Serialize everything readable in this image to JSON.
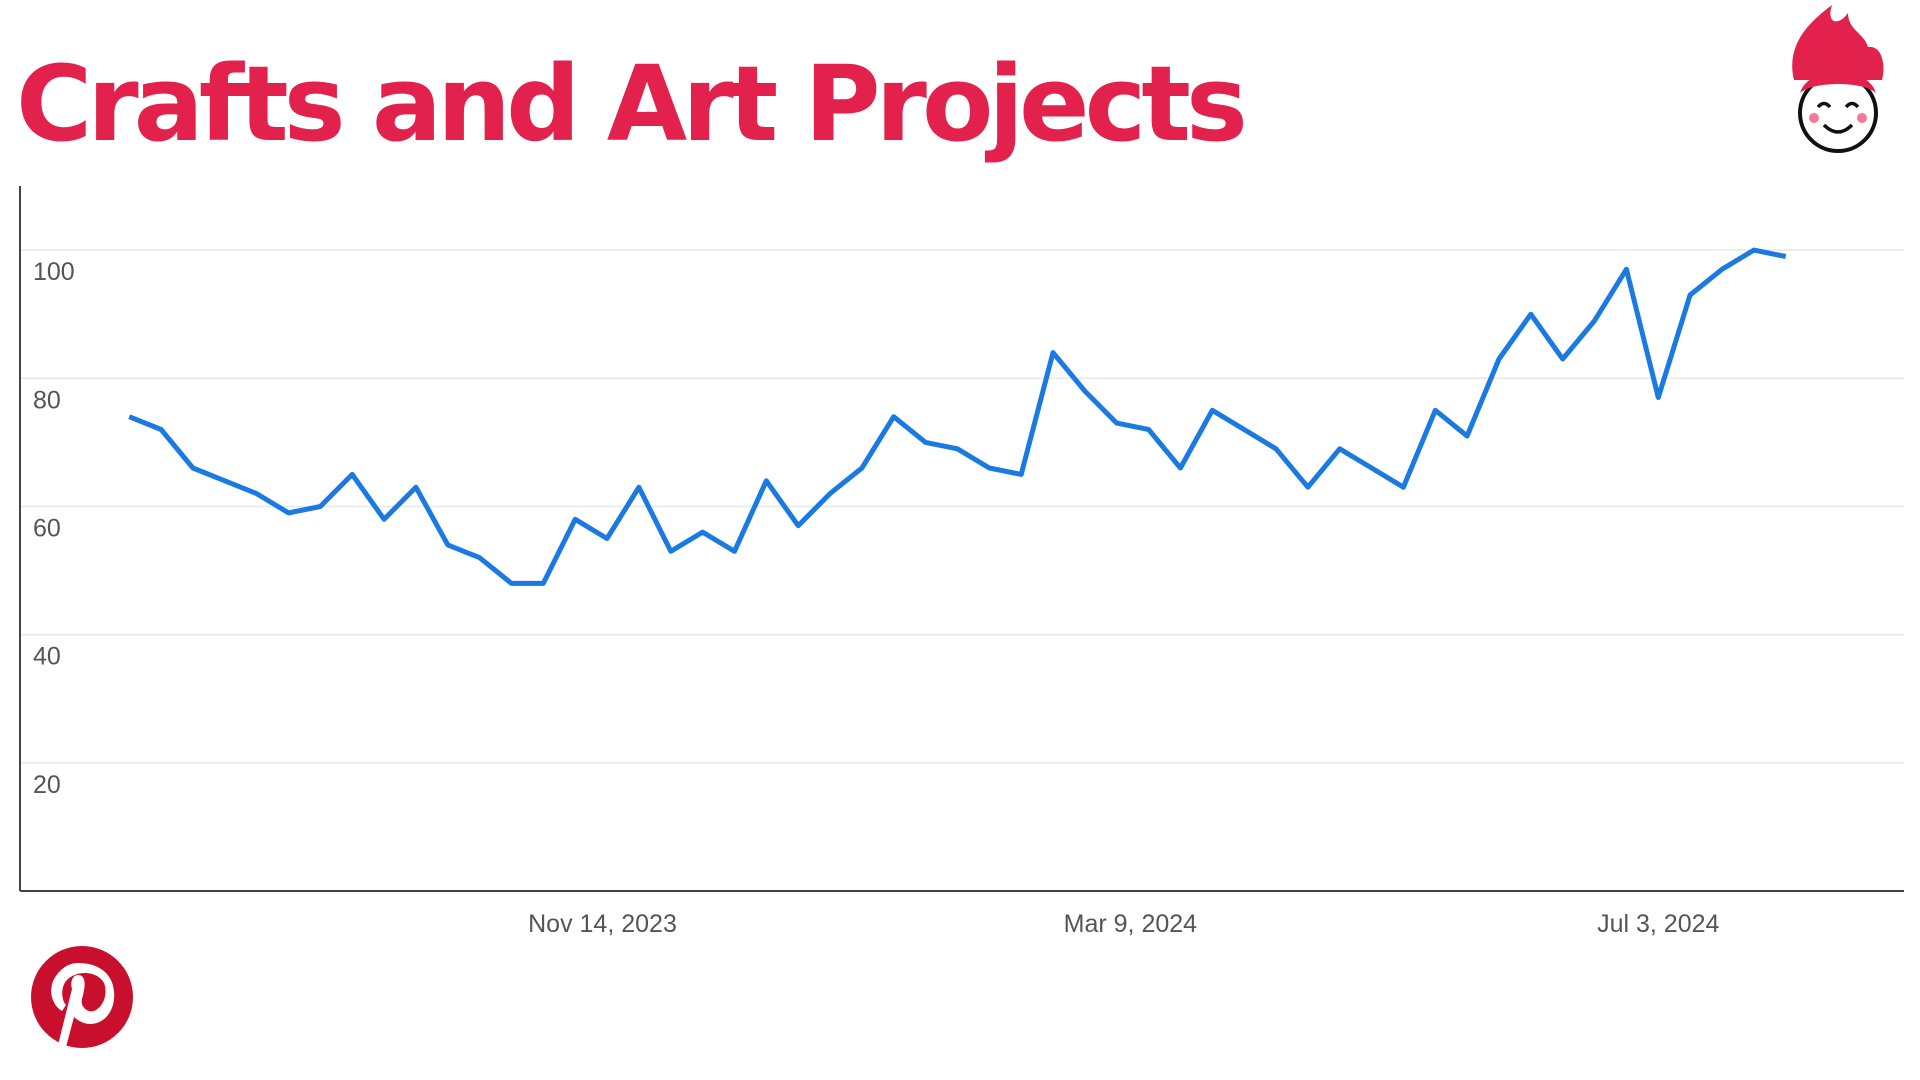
{
  "chart_data": {
    "type": "line",
    "title": "Crafts and Art Projects",
    "x": [
      "2023-08-02",
      "2023-08-09",
      "2023-08-16",
      "2023-08-23",
      "2023-08-30",
      "2023-09-06",
      "2023-09-13",
      "2023-09-20",
      "2023-09-27",
      "2023-10-04",
      "2023-10-11",
      "2023-10-18",
      "2023-10-25",
      "2023-11-01",
      "2023-11-08",
      "2023-11-15",
      "2023-11-22",
      "2023-11-29",
      "2023-12-06",
      "2023-12-13",
      "2023-12-20",
      "2023-12-27",
      "2024-01-03",
      "2024-01-10",
      "2024-01-17",
      "2024-01-24",
      "2024-01-31",
      "2024-02-07",
      "2024-02-14",
      "2024-02-21",
      "2024-02-28",
      "2024-03-06",
      "2024-03-13",
      "2024-03-20",
      "2024-03-27",
      "2024-04-03",
      "2024-04-10",
      "2024-04-17",
      "2024-04-24",
      "2024-05-01",
      "2024-05-08",
      "2024-05-15",
      "2024-05-22",
      "2024-05-29",
      "2024-06-05",
      "2024-06-12",
      "2024-06-19",
      "2024-06-26",
      "2024-07-03",
      "2024-07-10",
      "2024-07-17",
      "2024-07-24",
      "2024-07-31"
    ],
    "series": [
      {
        "color": "#1a7ae2",
        "values": [
          74,
          72,
          66,
          64,
          62,
          59,
          60,
          65,
          58,
          63,
          54,
          52,
          48,
          48,
          58,
          55,
          63,
          53,
          56,
          53,
          64,
          57,
          62,
          66,
          74,
          70,
          69,
          66,
          65,
          84,
          78,
          73,
          72,
          66,
          75,
          72,
          69,
          63,
          69,
          66,
          63,
          75,
          71,
          83,
          90,
          83,
          89,
          97,
          77,
          93,
          97,
          100,
          99
        ]
      }
    ],
    "xlim": [
      "2023-07-09",
      "2024-08-26"
    ],
    "xticks": [
      {
        "value": "2023-11-14",
        "label": "Nov 14, 2023"
      },
      {
        "value": "2024-03-09",
        "label": "Mar 9, 2024"
      },
      {
        "value": "2024-07-03",
        "label": "Jul 3, 2024"
      }
    ],
    "ylim": [
      0,
      110
    ],
    "yticks": [
      20,
      40,
      60,
      80,
      100
    ],
    "grid": true
  }
}
